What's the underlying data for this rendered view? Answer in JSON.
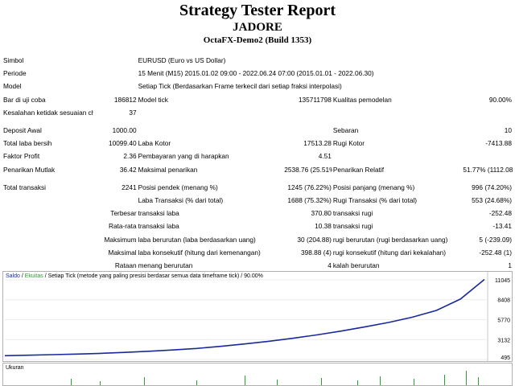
{
  "header": {
    "title": "Strategy Tester Report",
    "name": "JADORE",
    "server": "OctaFX-Demo2 (Build 1353)"
  },
  "report": {
    "symbol_label": "Simbol",
    "symbol_value": "EURUSD (Euro vs US Dollar)",
    "period_label": "Periode",
    "period_value": "15 Menit (M15) 2015.01.02 09:00 - 2022.06.24 07:00 (2015.01.01 - 2022.06.30)",
    "model_label": "Model",
    "model_value": "Setiap Tick (Berdasarkan Frame terkecil dari setiap fraksi interpolasi)",
    "bars_label": "Bar di uji coba",
    "bars_value": "186812",
    "ticks_label": "Model tick",
    "ticks_value": "135711798",
    "quality_label": "Kualitas pemodelan",
    "quality_value": "90.00%",
    "errors_label": "Kesalahan ketidak sesuaian chart",
    "errors_value": "37",
    "deposit_label": "Deposit Awal",
    "deposit_value": "1000.00",
    "spread_label": "Sebaran",
    "spread_value": "10",
    "netprofit_label": "Total laba bersih",
    "netprofit_value": "10099.40",
    "grossprofit_label": "Laba Kotor",
    "grossprofit_value": "17513.28",
    "grossloss_label": "Rugi Kotor",
    "grossloss_value": "-7413.88",
    "pf_label": "Faktor Profit",
    "pf_value": "2.36",
    "payoff_label": "Pembayaran yang di harapkan",
    "payoff_value": "4.51",
    "absdd_label": "Penarikan Mutlak",
    "absdd_value": "36.42",
    "maxdd_label": "Maksimal penarikan",
    "maxdd_value": "2538.76 (25.51%)",
    "reldd_label": "Penarikan Relatif",
    "reldd_value": "51.77% (1112.08)",
    "trades_label": "Total transaksi",
    "trades_value": "2241",
    "short_label": "Posisi pendek (menang %)",
    "short_value": "1245 (76.22%)",
    "long_label": "Posisi panjang (menang %)",
    "long_value": "996 (74.20%)",
    "profit_trades_label": "Laba Transaksi (% dari total)",
    "profit_trades_value": "1688 (75.32%)",
    "loss_trades_label": "Rugi Transaksi (% dari total)",
    "loss_trades_value": "553 (24.68%)",
    "largest_label": "Terbesar",
    "largest_profit_label": "transaksi laba",
    "largest_profit_value": "370.80",
    "largest_loss_label": "transaksi rugi",
    "largest_loss_value": "-252.48",
    "average_label": "Rata-rata",
    "average_profit_label": "transaksi laba",
    "average_profit_value": "10.38",
    "average_loss_label": "transaksi rugi",
    "average_loss_value": "-13.41",
    "maximum_label": "Maksimum",
    "max_consec_wins_label": "laba berurutan (laba berdasarkan uang)",
    "max_consec_wins_value": "30 (204.88)",
    "max_consec_losses_label": "rugi berurutan (rugi berdasarkan uang)",
    "max_consec_losses_value": "5 (-239.09)",
    "maximal_label": "Maksimal",
    "maximal_profit_label": "laba konsekutif (hitung dari kemenangan)",
    "maximal_profit_value": "398.88 (4)",
    "maximal_loss_label": "rugi konsekutif (hitung dari kekalahan)",
    "maximal_loss_value": "-252.48 (1)",
    "avgconsec_label": "Rataan",
    "avg_wins_label": "menang berurutan",
    "avg_wins_value": "4",
    "avg_losses_label": "kalah berurutan",
    "avg_losses_value": "1"
  },
  "chart": {
    "legend_balance": "Saldo",
    "legend_sep": "/",
    "legend_equity": "Ekuitas",
    "legend_rest": "/ Setiap Tick (metode yang paling presisi berdasar semua data timeframe tick) / 90.00%",
    "volume_label": "Ukuran",
    "balance_color": "#1a2a9a",
    "equity_color": "#2aa02a"
  },
  "chart_data": {
    "type": "line",
    "yticks": [
      495,
      3132,
      5770,
      8408,
      11045
    ],
    "ylim": [
      495,
      11045
    ],
    "series": [
      {
        "name": "Saldo",
        "x": [
          0,
          5,
          10,
          15,
          20,
          25,
          30,
          35,
          40,
          45,
          50,
          55,
          60,
          65,
          70,
          75,
          80,
          85,
          90,
          95,
          100
        ],
        "values": [
          1000,
          1060,
          1130,
          1210,
          1310,
          1430,
          1580,
          1750,
          1950,
          2230,
          2550,
          2900,
          3300,
          3750,
          4250,
          4800,
          5400,
          6100,
          7000,
          8500,
          11099
        ]
      }
    ]
  }
}
